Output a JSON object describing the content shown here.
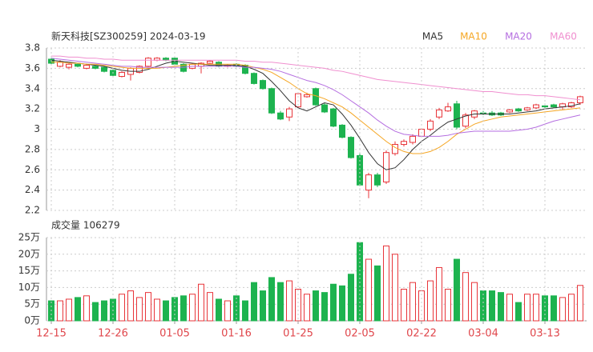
{
  "chart_data": [
    {
      "type": "candlestick",
      "title": "新天科技[SZ300259] 2024-03-19",
      "ylim": [
        2.2,
        3.8
      ],
      "yticks": [
        3.8,
        3.6,
        3.4,
        3.2,
        3,
        2.8,
        2.6,
        2.4,
        2.2
      ],
      "up_color": "#e8353a",
      "down_color": "#1db34f",
      "grid": true,
      "open": [
        3.69,
        3.62,
        3.61,
        3.64,
        3.6,
        3.62,
        3.61,
        3.58,
        3.52,
        3.54,
        3.56,
        3.62,
        3.68,
        3.7,
        3.7,
        3.64,
        3.6,
        3.62,
        3.65,
        3.66,
        3.62,
        3.64,
        3.63,
        3.55,
        3.48,
        3.4,
        3.16,
        3.12,
        3.22,
        3.32,
        3.4,
        3.24,
        3.2,
        3.04,
        2.92,
        2.74,
        2.4,
        2.55,
        2.48,
        2.76,
        2.85,
        2.87,
        2.93,
        3.0,
        3.12,
        3.18,
        3.25,
        3.03,
        3.12,
        3.16,
        3.16,
        3.16,
        3.17,
        3.2,
        3.19,
        3.21,
        3.23,
        3.24,
        3.22,
        3.22,
        3.26
      ],
      "high": [
        3.7,
        3.68,
        3.65,
        3.65,
        3.64,
        3.63,
        3.62,
        3.59,
        3.57,
        3.61,
        3.63,
        3.71,
        3.71,
        3.71,
        3.71,
        3.65,
        3.65,
        3.66,
        3.68,
        3.67,
        3.64,
        3.65,
        3.64,
        3.56,
        3.49,
        3.41,
        3.18,
        3.22,
        3.36,
        3.36,
        3.41,
        3.26,
        3.21,
        3.05,
        2.93,
        2.76,
        2.57,
        2.57,
        2.79,
        2.88,
        2.9,
        2.95,
        3.01,
        3.1,
        3.21,
        3.26,
        3.28,
        3.16,
        3.19,
        3.18,
        3.18,
        3.17,
        3.2,
        3.21,
        3.22,
        3.25,
        3.25,
        3.25,
        3.26,
        3.27,
        3.33
      ],
      "low": [
        3.64,
        3.61,
        3.59,
        3.61,
        3.59,
        3.59,
        3.56,
        3.52,
        3.51,
        3.48,
        3.55,
        3.61,
        3.67,
        3.67,
        3.63,
        3.56,
        3.59,
        3.55,
        3.64,
        3.61,
        3.61,
        3.61,
        3.54,
        3.44,
        3.39,
        3.15,
        3.09,
        3.08,
        3.21,
        3.31,
        3.23,
        3.16,
        3.02,
        2.91,
        2.71,
        2.44,
        2.32,
        2.43,
        2.46,
        2.74,
        2.83,
        2.85,
        2.92,
        2.98,
        3.1,
        3.17,
        3.0,
        3.01,
        3.1,
        3.14,
        3.13,
        3.13,
        3.16,
        3.17,
        3.18,
        3.2,
        3.21,
        3.21,
        3.19,
        3.21,
        3.24
      ],
      "close": [
        3.65,
        3.66,
        3.64,
        3.62,
        3.63,
        3.6,
        3.57,
        3.53,
        3.56,
        3.6,
        3.62,
        3.7,
        3.7,
        3.68,
        3.64,
        3.57,
        3.64,
        3.65,
        3.67,
        3.62,
        3.63,
        3.62,
        3.55,
        3.45,
        3.4,
        3.16,
        3.1,
        3.2,
        3.35,
        3.34,
        3.24,
        3.17,
        3.03,
        2.92,
        2.72,
        2.45,
        2.55,
        2.45,
        2.77,
        2.85,
        2.88,
        2.93,
        3.0,
        3.08,
        3.19,
        3.22,
        3.02,
        3.14,
        3.18,
        3.15,
        3.14,
        3.14,
        3.19,
        3.18,
        3.21,
        3.24,
        3.22,
        3.22,
        3.25,
        3.26,
        3.32
      ],
      "series": [
        {
          "name": "MA5",
          "color": "#333333",
          "values": [
            3.68,
            3.67,
            3.66,
            3.65,
            3.64,
            3.63,
            3.62,
            3.6,
            3.58,
            3.57,
            3.57,
            3.59,
            3.62,
            3.65,
            3.67,
            3.66,
            3.65,
            3.64,
            3.63,
            3.63,
            3.63,
            3.63,
            3.62,
            3.59,
            3.55,
            3.47,
            3.38,
            3.28,
            3.21,
            3.18,
            3.22,
            3.26,
            3.24,
            3.15,
            3.04,
            2.91,
            2.77,
            2.66,
            2.6,
            2.62,
            2.7,
            2.8,
            2.88,
            2.94,
            3.01,
            3.07,
            3.1,
            3.13,
            3.15,
            3.15,
            3.15,
            3.15,
            3.15,
            3.16,
            3.17,
            3.18,
            3.2,
            3.21,
            3.22,
            3.23,
            3.25
          ]
        },
        {
          "name": "MA10",
          "color": "#f5a623",
          "values": [
            3.66,
            3.66,
            3.65,
            3.65,
            3.64,
            3.64,
            3.63,
            3.62,
            3.61,
            3.6,
            3.6,
            3.6,
            3.6,
            3.61,
            3.62,
            3.63,
            3.64,
            3.64,
            3.64,
            3.64,
            3.64,
            3.64,
            3.63,
            3.61,
            3.59,
            3.56,
            3.51,
            3.46,
            3.4,
            3.35,
            3.33,
            3.3,
            3.26,
            3.22,
            3.16,
            3.09,
            3.02,
            2.95,
            2.88,
            2.82,
            2.78,
            2.76,
            2.76,
            2.78,
            2.82,
            2.88,
            2.95,
            3.0,
            3.05,
            3.08,
            3.1,
            3.12,
            3.13,
            3.14,
            3.15,
            3.16,
            3.17,
            3.18,
            3.19,
            3.2,
            3.21
          ]
        },
        {
          "name": "MA20",
          "color": "#b56ee0",
          "values": [
            3.7,
            3.69,
            3.68,
            3.67,
            3.66,
            3.65,
            3.64,
            3.63,
            3.62,
            3.62,
            3.61,
            3.61,
            3.61,
            3.61,
            3.61,
            3.61,
            3.62,
            3.62,
            3.62,
            3.62,
            3.62,
            3.62,
            3.61,
            3.61,
            3.6,
            3.59,
            3.57,
            3.54,
            3.51,
            3.48,
            3.46,
            3.43,
            3.39,
            3.34,
            3.28,
            3.22,
            3.16,
            3.09,
            3.03,
            2.98,
            2.95,
            2.94,
            2.93,
            2.93,
            2.93,
            2.94,
            2.96,
            2.97,
            2.98,
            2.98,
            2.98,
            2.98,
            2.98,
            2.99,
            3.0,
            3.02,
            3.05,
            3.08,
            3.1,
            3.12,
            3.14
          ]
        },
        {
          "name": "MA60",
          "color": "#f08fcf",
          "values": [
            3.72,
            3.72,
            3.71,
            3.71,
            3.7,
            3.7,
            3.69,
            3.69,
            3.68,
            3.68,
            3.68,
            3.68,
            3.68,
            3.68,
            3.68,
            3.68,
            3.68,
            3.68,
            3.68,
            3.68,
            3.68,
            3.68,
            3.67,
            3.67,
            3.66,
            3.66,
            3.65,
            3.64,
            3.63,
            3.62,
            3.61,
            3.6,
            3.58,
            3.57,
            3.55,
            3.53,
            3.51,
            3.49,
            3.48,
            3.47,
            3.46,
            3.45,
            3.44,
            3.43,
            3.42,
            3.41,
            3.4,
            3.39,
            3.38,
            3.37,
            3.37,
            3.36,
            3.35,
            3.34,
            3.34,
            3.33,
            3.33,
            3.32,
            3.31,
            3.3,
            3.29
          ]
        }
      ]
    },
    {
      "type": "bar",
      "title": "成交量 106279",
      "categories": [
        "12-15",
        null,
        null,
        null,
        null,
        null,
        null,
        "12-26",
        null,
        null,
        null,
        null,
        null,
        null,
        "01-05",
        null,
        null,
        null,
        null,
        null,
        null,
        "01-16",
        null,
        null,
        null,
        null,
        null,
        null,
        "01-25",
        null,
        null,
        null,
        null,
        null,
        null,
        "02-05",
        null,
        null,
        null,
        null,
        null,
        null,
        "02-22",
        null,
        null,
        null,
        null,
        null,
        null,
        "03-04",
        null,
        null,
        null,
        null,
        null,
        null,
        "03-13",
        null,
        null,
        null,
        null
      ],
      "values": [
        6,
        6,
        6.5,
        7,
        7.5,
        5.5,
        6,
        6.5,
        8,
        9,
        7,
        8.5,
        6.5,
        6,
        7,
        7.5,
        8,
        11,
        8.5,
        6.5,
        6,
        7.5,
        6,
        11.5,
        9,
        13,
        11.5,
        12,
        9.5,
        8,
        9,
        8.5,
        11,
        10.5,
        14,
        23.5,
        18.5,
        16.5,
        22.5,
        20,
        9.5,
        11.5,
        9,
        12,
        16,
        9.5,
        18.5,
        14.5,
        11.5,
        9,
        9,
        8.5,
        8,
        5.5,
        8,
        8,
        7.5,
        7.5,
        7,
        8,
        10.63
      ],
      "ylim": [
        0,
        25
      ],
      "yticks": [
        {
          "value": 25,
          "label": "25万"
        },
        {
          "value": 20,
          "label": "20万"
        },
        {
          "value": 15,
          "label": "15万"
        },
        {
          "value": 10,
          "label": "10万"
        },
        {
          "value": 5,
          "label": "5万"
        },
        {
          "value": 0,
          "label": "0万"
        }
      ],
      "grid": true
    }
  ]
}
